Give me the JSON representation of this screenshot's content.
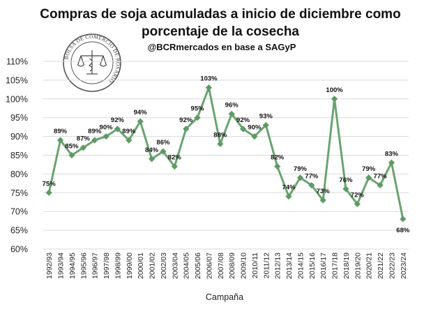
{
  "chart_data": {
    "type": "line",
    "title_line1": "Compras de soja acumuladas a inicio de diciembre como",
    "title_line2": "porcentaje de la cosecha",
    "subtitle": "@BCRmercados en base a SAGyP",
    "xlabel": "Campaña",
    "ylabel": "",
    "ylim": [
      60,
      110
    ],
    "yticks": [
      "60%",
      "65%",
      "70%",
      "75%",
      "80%",
      "85%",
      "90%",
      "95%",
      "100%",
      "105%",
      "110%"
    ],
    "grid": true,
    "line_color": "#6aa36f",
    "marker_color": "#5e9a64",
    "categories": [
      "1992/93",
      "1993/94",
      "1994/95",
      "1995/96",
      "1996/97",
      "1997/98",
      "1998/99",
      "1999/00",
      "2000/01",
      "2001/02",
      "2002/03",
      "2003/04",
      "2004/05",
      "2005/06",
      "2006/07",
      "2007/08",
      "2008/09",
      "2009/10",
      "2010/11",
      "2011/12",
      "2012/13",
      "2013/14",
      "2014/15",
      "2015/16",
      "2016/17",
      "2017/18",
      "2018/19",
      "2019/20",
      "2020/21",
      "2021/22",
      "2022/23",
      "2023/24"
    ],
    "values": [
      75,
      89,
      85,
      87,
      89,
      90,
      92,
      89,
      94,
      84,
      86,
      82,
      92,
      95,
      103,
      88,
      96,
      92,
      90,
      93,
      82,
      74,
      79,
      77,
      73,
      100,
      76,
      72,
      79,
      77,
      83,
      68
    ],
    "data_labels": [
      "75%",
      "89%",
      "85%",
      "87%",
      "89%",
      "90%",
      "92%",
      "89%",
      "94%",
      "84%",
      "86%",
      "82%",
      "92%",
      "95%",
      "103%",
      "88%",
      "96%",
      "92%",
      "90%",
      "93%",
      "82%",
      "74%",
      "79%",
      "77%",
      "73%",
      "100%",
      "76%",
      "72%",
      "79%",
      "77%",
      "83%",
      "68%"
    ]
  },
  "logo": {
    "name": "bcr-seal",
    "text": "BOLSA DE COMERCIO DE ROSARIO"
  }
}
